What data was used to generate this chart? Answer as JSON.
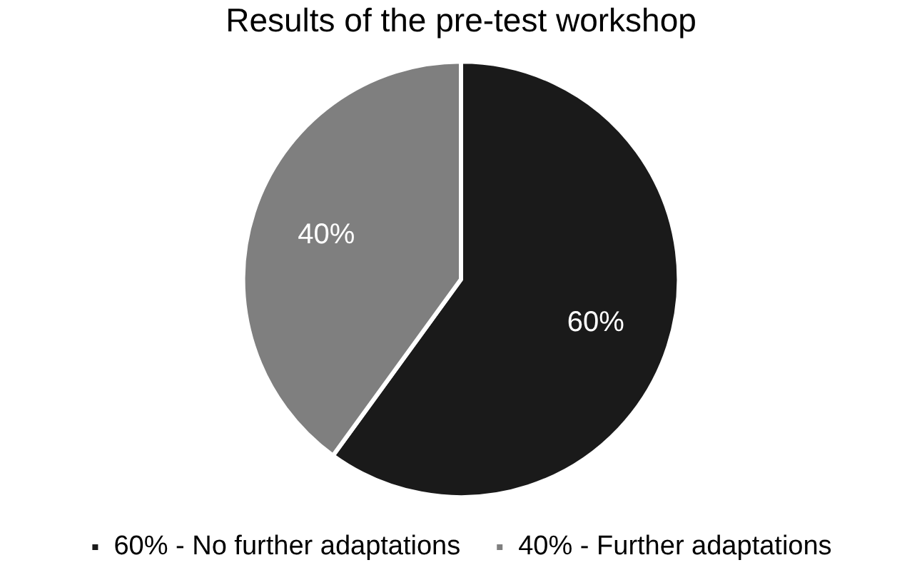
{
  "chart_data": {
    "type": "pie",
    "title": "Results of the pre-test workshop",
    "categories": [
      "60% - No further adaptations",
      "40% - Further adaptations"
    ],
    "values": [
      60,
      40
    ],
    "colors": [
      "#1a1a1a",
      "#7f7f7f"
    ],
    "value_labels": [
      "60%",
      "40%"
    ],
    "legend": "bottom"
  }
}
